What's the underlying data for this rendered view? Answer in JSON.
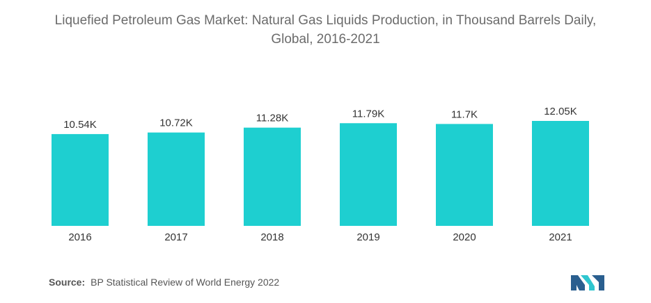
{
  "chart_data": {
    "type": "bar",
    "title_line1": "Liquefied Petroleum Gas Market: Natural Gas Liquids Production, in Thousand Barrels Daily,",
    "title_line2": "Global, 2016-2021",
    "categories": [
      "2016",
      "2017",
      "2018",
      "2019",
      "2020",
      "2021"
    ],
    "values": [
      10.54,
      10.72,
      11.28,
      11.79,
      11.7,
      12.05
    ],
    "data_labels": [
      "10.54K",
      "10.72K",
      "11.28K",
      "11.79K",
      "11.7K",
      "12.05K"
    ],
    "bar_color": "#1ecfd0",
    "grid": false,
    "legend": "none"
  },
  "source": {
    "label": "Source:",
    "text": "BP Statistical Review of World Energy 2022"
  },
  "logo": {
    "icon": "mordor-intelligence-logo-icon",
    "color_dark": "#2a5f8f",
    "color_light": "#2fc6cf"
  }
}
